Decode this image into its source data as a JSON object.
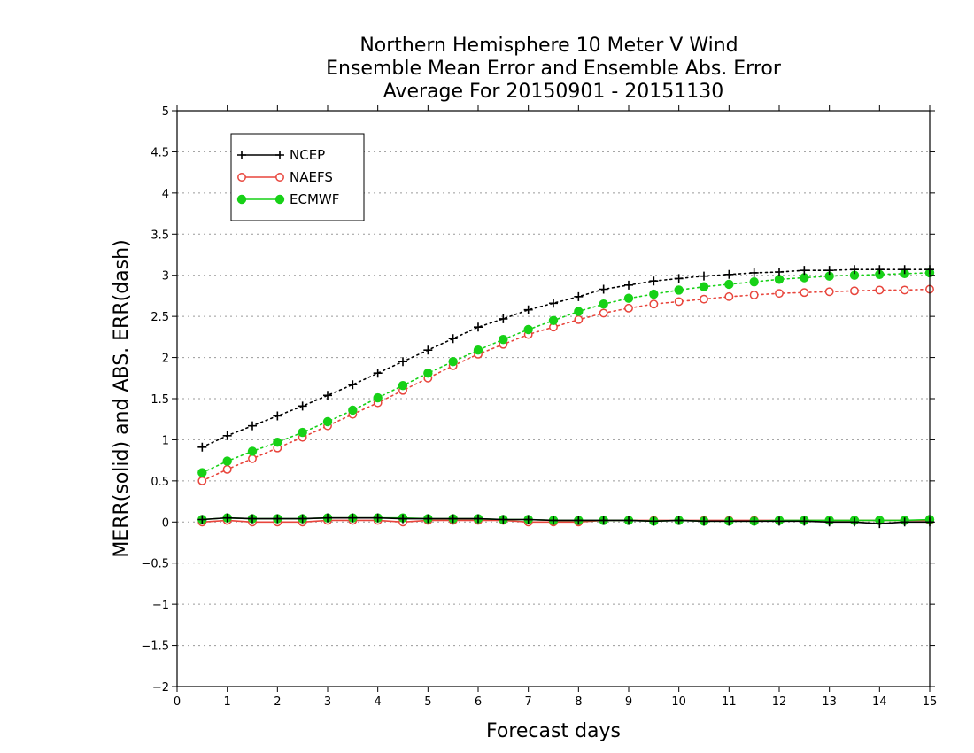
{
  "chart_data": {
    "type": "line",
    "title": [
      "Northern Hemisphere 10 Meter V Wind",
      "Ensemble Mean Error and Ensemble Abs. Error",
      "Average For 20150901 - 20151130"
    ],
    "xlabel": "Forecast days",
    "ylabel": "MERR(solid) and ABS. ERR(dash)",
    "xlim": [
      0,
      15
    ],
    "ylim": [
      -2,
      5
    ],
    "xticks": [
      "0",
      "1",
      "2",
      "3",
      "4",
      "5",
      "6",
      "7",
      "8",
      "9",
      "10",
      "11",
      "12",
      "13",
      "14",
      "15"
    ],
    "yticks": [
      "−2",
      "−1.5",
      "−1",
      "−0.5",
      "0",
      "0.5",
      "1",
      "1.5",
      "2",
      "2.5",
      "3",
      "3.5",
      "4",
      "4.5",
      "5"
    ],
    "grid": true,
    "legend_position": "top-left",
    "x": [
      0.5,
      1,
      1.5,
      2,
      2.5,
      3,
      3.5,
      4,
      4.5,
      5,
      5.5,
      6,
      6.5,
      7,
      7.5,
      8,
      8.5,
      9,
      9.5,
      10,
      10.5,
      11,
      11.5,
      12,
      12.5,
      13,
      13.5,
      14,
      14.5,
      15
    ],
    "series": [
      {
        "name": "NCEP",
        "color": "#000000",
        "marker": "plus",
        "mean_error": [
          0.03,
          0.05,
          0.04,
          0.04,
          0.04,
          0.05,
          0.05,
          0.05,
          0.04,
          0.04,
          0.04,
          0.04,
          0.03,
          0.03,
          0.02,
          0.02,
          0.02,
          0.02,
          0.01,
          0.02,
          0.01,
          0.01,
          0.01,
          0.01,
          0.01,
          0.0,
          0.0,
          -0.02,
          0.0,
          0.0
        ],
        "abs_error": [
          0.91,
          1.05,
          1.17,
          1.29,
          1.41,
          1.54,
          1.67,
          1.81,
          1.95,
          2.09,
          2.23,
          2.37,
          2.47,
          2.58,
          2.66,
          2.74,
          2.83,
          2.88,
          2.93,
          2.96,
          2.99,
          3.01,
          3.03,
          3.04,
          3.06,
          3.06,
          3.07,
          3.07,
          3.07,
          3.07
        ]
      },
      {
        "name": "NAEFS",
        "color": "#e8453c",
        "marker": "open-circle",
        "mean_error": [
          0.0,
          0.02,
          0.0,
          0.0,
          0.0,
          0.02,
          0.02,
          0.02,
          0.0,
          0.02,
          0.02,
          0.02,
          0.02,
          0.0,
          0.0,
          0.0,
          0.02,
          0.02,
          0.02,
          0.02,
          0.02,
          0.02,
          0.02,
          0.02,
          0.02,
          0.02,
          0.02,
          0.02,
          0.02,
          0.02
        ],
        "abs_error": [
          0.5,
          0.64,
          0.77,
          0.9,
          1.03,
          1.17,
          1.31,
          1.45,
          1.6,
          1.75,
          1.9,
          2.04,
          2.16,
          2.28,
          2.37,
          2.46,
          2.54,
          2.6,
          2.65,
          2.68,
          2.71,
          2.74,
          2.76,
          2.78,
          2.79,
          2.8,
          2.81,
          2.82,
          2.82,
          2.83
        ]
      },
      {
        "name": "ECMWF",
        "color": "#17d117",
        "marker": "filled-circle",
        "mean_error": [
          0.03,
          0.05,
          0.04,
          0.04,
          0.04,
          0.05,
          0.05,
          0.05,
          0.05,
          0.04,
          0.04,
          0.04,
          0.03,
          0.03,
          0.02,
          0.02,
          0.02,
          0.02,
          0.01,
          0.02,
          0.01,
          0.01,
          0.01,
          0.02,
          0.02,
          0.02,
          0.02,
          0.02,
          0.02,
          0.03
        ],
        "abs_error": [
          0.6,
          0.74,
          0.86,
          0.97,
          1.09,
          1.22,
          1.36,
          1.51,
          1.66,
          1.81,
          1.95,
          2.09,
          2.22,
          2.34,
          2.45,
          2.56,
          2.65,
          2.72,
          2.77,
          2.82,
          2.86,
          2.89,
          2.92,
          2.95,
          2.97,
          2.99,
          3.0,
          3.01,
          3.02,
          3.03
        ]
      }
    ]
  }
}
